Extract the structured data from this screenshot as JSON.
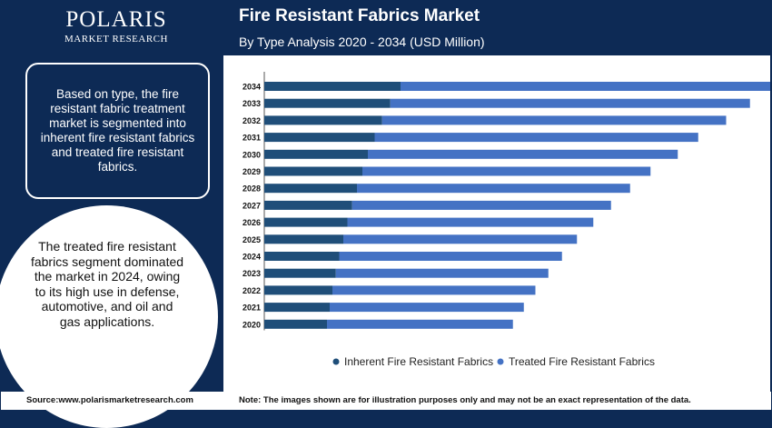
{
  "logo": {
    "name": "POLARIS",
    "sub": "MARKET RESEARCH"
  },
  "header": {
    "title": "Fire Resistant Fabrics Market",
    "subtitle": "By Type Analysis 2020 - 2034 (USD Million)"
  },
  "panel": {
    "info_text": "Based on type, the fire resistant fabric treatment market is segmented into inherent fire resistant fabrics and treated fire resistant fabrics.",
    "highlight_text": "The treated fire resistant fabrics segment dominated the market in 2024, owing to its high use in defense, automotive, and oil and gas applications."
  },
  "footer": {
    "source": "Source:www.polarismarketresearch.com",
    "note": "Note: The images shown are for illustration purposes only and may not be an exact representation of the data."
  },
  "colors": {
    "inherent": "#1f4e79",
    "treated": "#4472c4",
    "navy": "#0d2a55"
  },
  "chart_data": {
    "type": "bar",
    "orientation": "horizontal",
    "stacked": true,
    "categories": [
      "2034",
      "2033",
      "2032",
      "2031",
      "2030",
      "2029",
      "2028",
      "2027",
      "2026",
      "2025",
      "2024",
      "2023",
      "2022",
      "2021",
      "2020"
    ],
    "series": [
      {
        "name": "Inherent Fire Resistant Fabrics",
        "values": [
          200,
          185,
          173,
          162,
          152,
          144,
          136,
          129,
          122,
          116,
          110,
          105,
          100,
          96,
          92
        ]
      },
      {
        "name": "Treated Fire Resistant Fabrics",
        "values": [
          548,
          528,
          505,
          475,
          455,
          423,
          401,
          380,
          361,
          343,
          327,
          312,
          298,
          285,
          273
        ]
      }
    ],
    "xlim": [
      0,
      800
    ],
    "grid": false,
    "legend": "bottom"
  }
}
